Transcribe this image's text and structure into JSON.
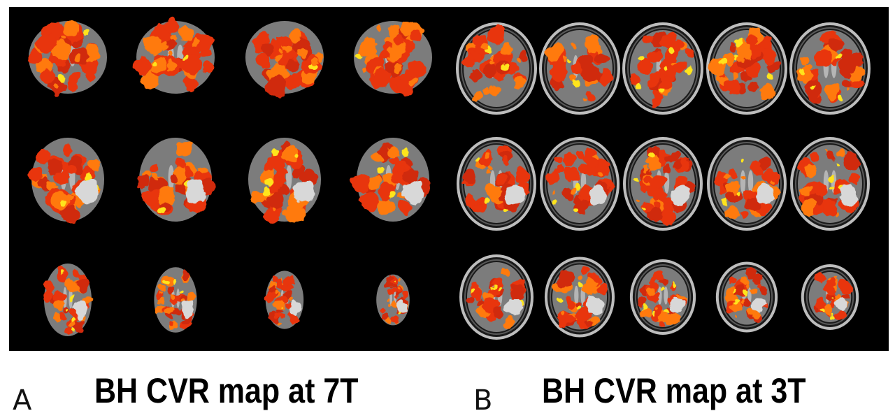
{
  "figure": {
    "panels": [
      {
        "letter": "A",
        "caption": "BH CVR map at 7T",
        "field": "7T",
        "rows": 3,
        "cols": 4
      },
      {
        "letter": "B",
        "caption": "BH CVR map at 3T",
        "field": "3T",
        "rows": 3,
        "cols": 5
      }
    ]
  },
  "colors": {
    "background": "#000000",
    "brain_gray": "#7c7c7c",
    "lesion_white": "#d8d8d8",
    "cvr_red": "#e8340c",
    "cvr_orange": "#ff7a10",
    "cvr_yellow": "#ffe41a",
    "skull_ring": "#bdbdbd"
  },
  "icons": [
    "brain-slice-7t",
    "brain-slice-3t"
  ]
}
